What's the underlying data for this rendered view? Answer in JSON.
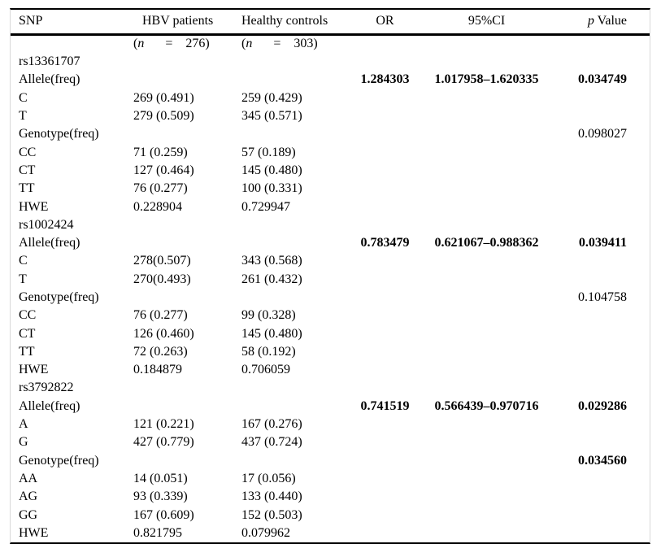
{
  "style": {
    "background": "#ffffff",
    "text_color": "#000000",
    "rule_color": "#000000",
    "side_border_color": "#d9d9d9"
  },
  "table": {
    "header": {
      "snp": "SNP",
      "hbv": "HBV patients",
      "healthy": "Healthy controls",
      "or": "OR",
      "ci": "95%CI",
      "p_italic": "p",
      "p_rest": "Value"
    },
    "subheader": {
      "hbv": {
        "open": "(",
        "var": "n",
        "eq": "=",
        "num": "276)"
      },
      "healthy": {
        "open": "(",
        "var": "n",
        "eq": "=",
        "num": "303)"
      }
    },
    "rows": [
      {
        "label": "rs13361707"
      },
      {
        "label": "Allele(freq)",
        "or": "1.284303",
        "ci": "1.017958–1.620335",
        "p": "0.034749",
        "bold": true
      },
      {
        "label": "C",
        "hbv": "269 (0.491)",
        "healthy": "259 (0.429)"
      },
      {
        "label": "T",
        "hbv": "279 (0.509)",
        "healthy": "345 (0.571)"
      },
      {
        "label": "Genotype(freq)",
        "p": "0.098027",
        "bold": false
      },
      {
        "label": "CC",
        "hbv": "71 (0.259)",
        "healthy": "57 (0.189)"
      },
      {
        "label": "CT",
        "hbv": "127 (0.464)",
        "healthy": "145 (0.480)"
      },
      {
        "label": "TT",
        "hbv": "76 (0.277)",
        "healthy": "100 (0.331)"
      },
      {
        "label": "HWE",
        "hbv": "0.228904",
        "healthy": "0.729947"
      },
      {
        "label": "rs1002424"
      },
      {
        "label": "Allele(freq)",
        "or": "0.783479",
        "ci": "0.621067–0.988362",
        "p": "0.039411",
        "bold": true
      },
      {
        "label": "C",
        "hbv": "278(0.507)",
        "healthy": "343 (0.568)"
      },
      {
        "label": "T",
        "hbv": "270(0.493)",
        "healthy": "261 (0.432)"
      },
      {
        "label": "Genotype(freq)",
        "p": "0.104758",
        "bold": false
      },
      {
        "label": "CC",
        "hbv": "76 (0.277)",
        "healthy": "99 (0.328)"
      },
      {
        "label": "CT",
        "hbv": "126 (0.460)",
        "healthy": "145 (0.480)"
      },
      {
        "label": "TT",
        "hbv": "72 (0.263)",
        "healthy": "58 (0.192)"
      },
      {
        "label": "HWE",
        "hbv": "0.184879",
        "healthy": "0.706059"
      },
      {
        "label": "rs3792822"
      },
      {
        "label": "Allele(freq)",
        "or": "0.741519",
        "ci": "0.566439–0.970716",
        "p": "0.029286",
        "bold": true
      },
      {
        "label": "A",
        "hbv": "121 (0.221)",
        "healthy": "167 (0.276)"
      },
      {
        "label": "G",
        "hbv": "427 (0.779)",
        "healthy": "437 (0.724)"
      },
      {
        "label": "Genotype(freq)",
        "p": "0.034560",
        "bold": true
      },
      {
        "label": "AA",
        "hbv": "14 (0.051)",
        "healthy": "17 (0.056)"
      },
      {
        "label": "AG",
        "hbv": "93 (0.339)",
        "healthy": "133 (0.440)"
      },
      {
        "label": "GG",
        "hbv": "167 (0.609)",
        "healthy": "152 (0.503)"
      },
      {
        "label": "HWE",
        "hbv": "0.821795",
        "healthy": "0.079962"
      }
    ]
  }
}
